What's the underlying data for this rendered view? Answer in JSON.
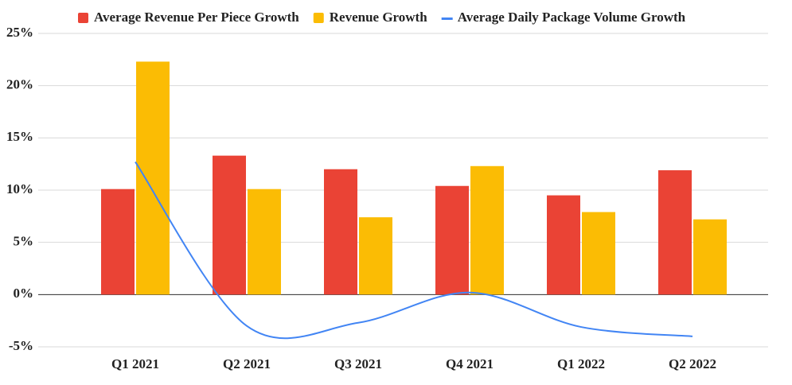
{
  "chart_data": {
    "type": "bar",
    "categories": [
      "Q1 2021",
      "Q2 2021",
      "Q3 2021",
      "Q4 2021",
      "Q1 2022",
      "Q2 2022"
    ],
    "series": [
      {
        "name": "Average Revenue Per Piece Growth",
        "color": "#ea4335",
        "type": "bar",
        "values": [
          10.1,
          13.3,
          12.0,
          10.4,
          9.5,
          11.9
        ]
      },
      {
        "name": "Revenue Growth",
        "color": "#fbbc04",
        "type": "bar",
        "values": [
          22.3,
          10.1,
          7.4,
          12.3,
          7.9,
          7.2
        ]
      },
      {
        "name": "Average Daily Package Volume Growth",
        "color": "#4285f4",
        "type": "line",
        "values": [
          12.7,
          -3.0,
          -2.7,
          0.2,
          -3.1,
          -4.0
        ]
      }
    ],
    "ylim": [
      -5,
      25
    ],
    "yticks": [
      {
        "value": -5,
        "label": "-5%"
      },
      {
        "value": 0,
        "label": "0%"
      },
      {
        "value": 5,
        "label": "5%"
      },
      {
        "value": 10,
        "label": "10%"
      },
      {
        "value": 15,
        "label": "15%"
      },
      {
        "value": 20,
        "label": "20%"
      },
      {
        "value": 25,
        "label": "25%"
      }
    ],
    "grid": true,
    "legend": "top"
  }
}
